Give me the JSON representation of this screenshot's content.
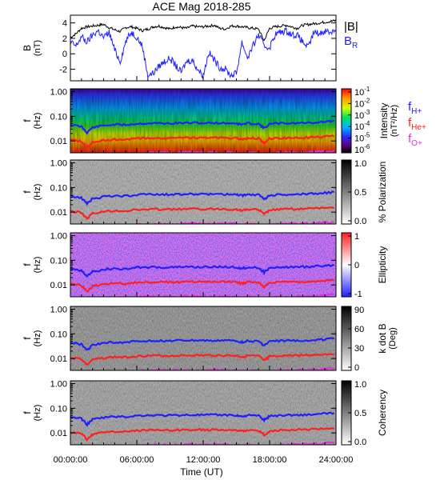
{
  "chart_data": {
    "title": "ACE Mag 2018-285",
    "xlabel": "Time (UT)",
    "x_tick_labels": [
      "00:00:00",
      "06:00:00",
      "12:00:00",
      "18:00:00",
      "24:00:00"
    ],
    "x_range_hours": [
      0,
      24
    ],
    "panels": [
      {
        "type": "line",
        "ylabel": "B",
        "yunit": "(nT)",
        "ylim": [
          -3.5,
          5
        ],
        "y_tick_labels": [
          "4",
          "2",
          "0",
          "-2"
        ],
        "series": [
          {
            "name": "|B|",
            "color": "#000000",
            "x": [
              0,
              0.5,
              1,
              1.5,
              2,
              2.5,
              3,
              3.5,
              4,
              4.5,
              5,
              5.5,
              6,
              6.5,
              7,
              7.5,
              8,
              8.5,
              9,
              9.5,
              10,
              10.5,
              11,
              11.5,
              12,
              12.5,
              13,
              13.5,
              14,
              14.5,
              15,
              15.5,
              16,
              16.5,
              17,
              17.5,
              18,
              18.5,
              19,
              19.5,
              20,
              20.5,
              21,
              21.5,
              22,
              22.5,
              23,
              23.5,
              24
            ],
            "y": [
              2.1,
              2.6,
              3.3,
              3.5,
              3.6,
              3.7,
              3.8,
              3.4,
              3.1,
              2.9,
              3.4,
              3.5,
              3.3,
              3.0,
              3.2,
              3.5,
              3.6,
              3.4,
              3.2,
              3.5,
              3.4,
              3.3,
              3.6,
              3.5,
              3.5,
              3.6,
              3.7,
              3.3,
              3.2,
              3.6,
              3.6,
              3.5,
              3.4,
              3.3,
              3.2,
              1.7,
              3.3,
              3.5,
              3.6,
              3.7,
              3.5,
              3.3,
              3.7,
              3.8,
              3.9,
              4.0,
              4.1,
              4.2,
              4.3
            ]
          },
          {
            "name": "B",
            "subscript": "R",
            "color": "#2020ff",
            "x": [
              0,
              0.5,
              1,
              1.5,
              2,
              2.5,
              3,
              3.5,
              4,
              4.5,
              5,
              5.5,
              6,
              6.5,
              7,
              7.5,
              8,
              8.5,
              9,
              9.5,
              10,
              10.5,
              11,
              11.5,
              12,
              12.5,
              13,
              13.5,
              14,
              14.5,
              15,
              15.5,
              16,
              16.5,
              17,
              17.5,
              18,
              18.5,
              19,
              19.5,
              20,
              20.5,
              21,
              21.5,
              22,
              22.5,
              23,
              23.5,
              24
            ],
            "y": [
              1.5,
              1.0,
              2.2,
              1.5,
              2.4,
              3.0,
              2.1,
              2.8,
              0.5,
              -1.0,
              1.6,
              2.8,
              2.2,
              1.0,
              -2.8,
              -2.5,
              -1.6,
              -1.0,
              -0.6,
              -1.5,
              -2.4,
              -1.0,
              -0.8,
              -2.0,
              -2.8,
              0.2,
              -0.8,
              -1.8,
              -2.0,
              -2.8,
              -2.5,
              1.5,
              -0.5,
              1.0,
              2.5,
              1.0,
              0.8,
              2.5,
              2.8,
              3.0,
              2.5,
              2.4,
              1.5,
              0.8,
              2.8,
              2.6,
              3.0,
              2.8,
              3.2
            ]
          }
        ]
      },
      {
        "type": "heatmap",
        "name": "intensity",
        "ylabel": "f",
        "yunit": "(Hz)",
        "y_tick_labels": [
          "1.00",
          "0.10",
          "0.01"
        ],
        "colorbar": {
          "label": "Intensity",
          "unit": "(nT²/Hz)",
          "log": true,
          "ticks": [
            "10",
            "10",
            "10",
            "10",
            "10",
            "10"
          ],
          "exponents": [
            "-1",
            "-2",
            "-3",
            "-4",
            "-5",
            "-6"
          ]
        },
        "lines": [
          {
            "name": "f",
            "subscript": "H+",
            "color": "#2020ff"
          },
          {
            "name": "f",
            "subscript": "He+",
            "color": "#ff2020"
          },
          {
            "name": "f",
            "subscript": "O+",
            "color": "#e030e0"
          }
        ]
      },
      {
        "type": "heatmap",
        "name": "polarization",
        "ylabel": "f",
        "yunit": "(Hz)",
        "y_tick_labels": [
          "1.00",
          "0.10",
          "0.01"
        ],
        "colorbar": {
          "label": "% Polarization",
          "ticks": [
            "1.0",
            "0.5",
            "0.0"
          ]
        }
      },
      {
        "type": "heatmap",
        "name": "ellipticity",
        "ylabel": "f",
        "yunit": "(Hz)",
        "y_tick_labels": [
          "1.00",
          "0.10",
          "0.01"
        ],
        "colorbar": {
          "label": "Ellipticity",
          "ticks": [
            "1",
            "0",
            "-1"
          ]
        }
      },
      {
        "type": "heatmap",
        "name": "kdotb",
        "ylabel": "f",
        "yunit": "(Hz)",
        "y_tick_labels": [
          "1.00",
          "0.10",
          "0.01"
        ],
        "colorbar": {
          "label": "k dot B",
          "unit": "(Deg)",
          "ticks": [
            "90",
            "60",
            "30",
            "0"
          ]
        }
      },
      {
        "type": "heatmap",
        "name": "coherency",
        "ylabel": "f",
        "yunit": "(Hz)",
        "y_tick_labels": [
          "1.00",
          "0.10",
          "0.01"
        ],
        "colorbar": {
          "label": "Coherency",
          "ticks": [
            "1.0",
            "0.5",
            "0.0"
          ]
        }
      }
    ],
    "gyro_lines": {
      "x": [
        0,
        1,
        1.5,
        2,
        3,
        4,
        5,
        6,
        7,
        8,
        9,
        10,
        11,
        12,
        13,
        14,
        15,
        15.5,
        16,
        17,
        17.5,
        18,
        19,
        20,
        21,
        22,
        23,
        24
      ],
      "fH": [
        0.045,
        0.038,
        0.022,
        0.035,
        0.042,
        0.046,
        0.045,
        0.05,
        0.052,
        0.052,
        0.051,
        0.053,
        0.054,
        0.053,
        0.054,
        0.053,
        0.052,
        0.046,
        0.052,
        0.05,
        0.033,
        0.048,
        0.052,
        0.053,
        0.054,
        0.056,
        0.06,
        0.065
      ],
      "fHe": [
        0.011,
        0.0095,
        0.0055,
        0.0088,
        0.0105,
        0.0115,
        0.0112,
        0.0125,
        0.013,
        0.013,
        0.0128,
        0.0132,
        0.0135,
        0.0133,
        0.0135,
        0.0133,
        0.013,
        0.0115,
        0.013,
        0.0125,
        0.0082,
        0.012,
        0.013,
        0.0133,
        0.0135,
        0.014,
        0.015,
        0.016
      ],
      "fO": [
        0.0028,
        0.0024,
        0.0014,
        0.0022,
        0.0026,
        0.0029,
        0.0028,
        0.0031,
        0.0033,
        0.0033,
        0.0032,
        0.0033,
        0.0034,
        0.0033,
        0.0034,
        0.0033,
        0.0033,
        0.0029,
        0.0033,
        0.0031,
        0.0021,
        0.003,
        0.0033,
        0.0033,
        0.0034,
        0.0035,
        0.0038,
        0.004
      ]
    }
  }
}
